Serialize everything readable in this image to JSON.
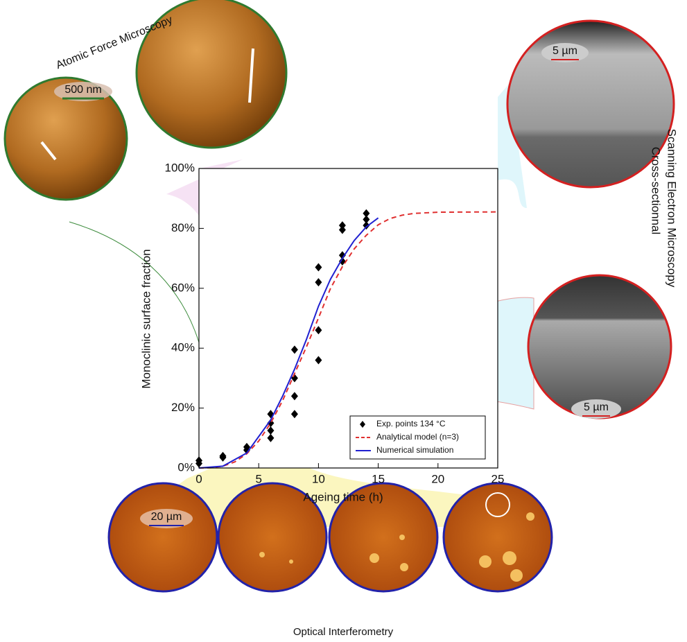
{
  "chart_data": {
    "type": "scatter",
    "x_label": "Ageing time (h)",
    "y_label": "Monoclinic surface fraction",
    "xlim": [
      0,
      25
    ],
    "xticks": [
      0,
      5,
      10,
      15,
      20,
      25
    ],
    "ylim": [
      0,
      100
    ],
    "yticks": [
      {
        "value": 0,
        "label": "0%"
      },
      {
        "value": 20,
        "label": "20%"
      },
      {
        "value": 40,
        "label": "40%"
      },
      {
        "value": 60,
        "label": "60%"
      },
      {
        "value": 80,
        "label": "80%"
      },
      {
        "value": 100,
        "label": "100%"
      }
    ],
    "series": [
      {
        "name": "Exp. points 134 °C",
        "color": "#000000",
        "type": "scatter",
        "x": [
          0,
          0,
          2,
          2,
          4,
          4,
          6,
          6,
          6,
          6,
          8,
          8,
          8,
          8,
          10,
          10,
          10,
          10,
          12,
          12,
          12,
          12,
          14,
          14,
          14
        ],
        "values": [
          1.5,
          2.5,
          3.5,
          4,
          6,
          7,
          10,
          12.5,
          15,
          18,
          18,
          24,
          30,
          39.5,
          36,
          46,
          62,
          67,
          69,
          71,
          79.5,
          81,
          81,
          83,
          85
        ]
      },
      {
        "name": "Analytical model (n=3)",
        "color": "#e03030",
        "type": "line",
        "dash": true,
        "x": [
          0,
          1,
          2,
          3,
          4,
          5,
          6,
          7,
          8,
          9,
          10,
          11,
          12,
          13,
          14,
          15,
          16,
          17,
          18,
          20,
          25
        ],
        "values": [
          0,
          0.08,
          0.61,
          2.03,
          4.74,
          9.0,
          15.0,
          22.5,
          31.5,
          40.5,
          50.1,
          59.9,
          67.2,
          73.2,
          77.7,
          81.2,
          83.3,
          84.4,
          85.0,
          85.4,
          85.5
        ]
      },
      {
        "name": "Numerical simulation",
        "color": "#2020d0",
        "type": "line",
        "dash": false,
        "x": [
          0,
          2,
          4,
          6,
          7,
          8,
          9,
          10,
          11,
          12,
          13,
          14,
          15
        ],
        "values": [
          0,
          0.6,
          5,
          16,
          24,
          33,
          43,
          54,
          63,
          70,
          76,
          80.5,
          83.5
        ]
      }
    ],
    "annotations": {
      "afm": "Atomic Force Microscopy",
      "afm_scale": "500 nm",
      "sem_line1": "Cross-sectionnal",
      "sem_line2": "Scanning Electron Microscopy",
      "sem_scale_top": "5 µm",
      "sem_scale_bottom": "5 µm",
      "optical": "Optical Interferometry",
      "optical_scale": "20 µm"
    }
  }
}
